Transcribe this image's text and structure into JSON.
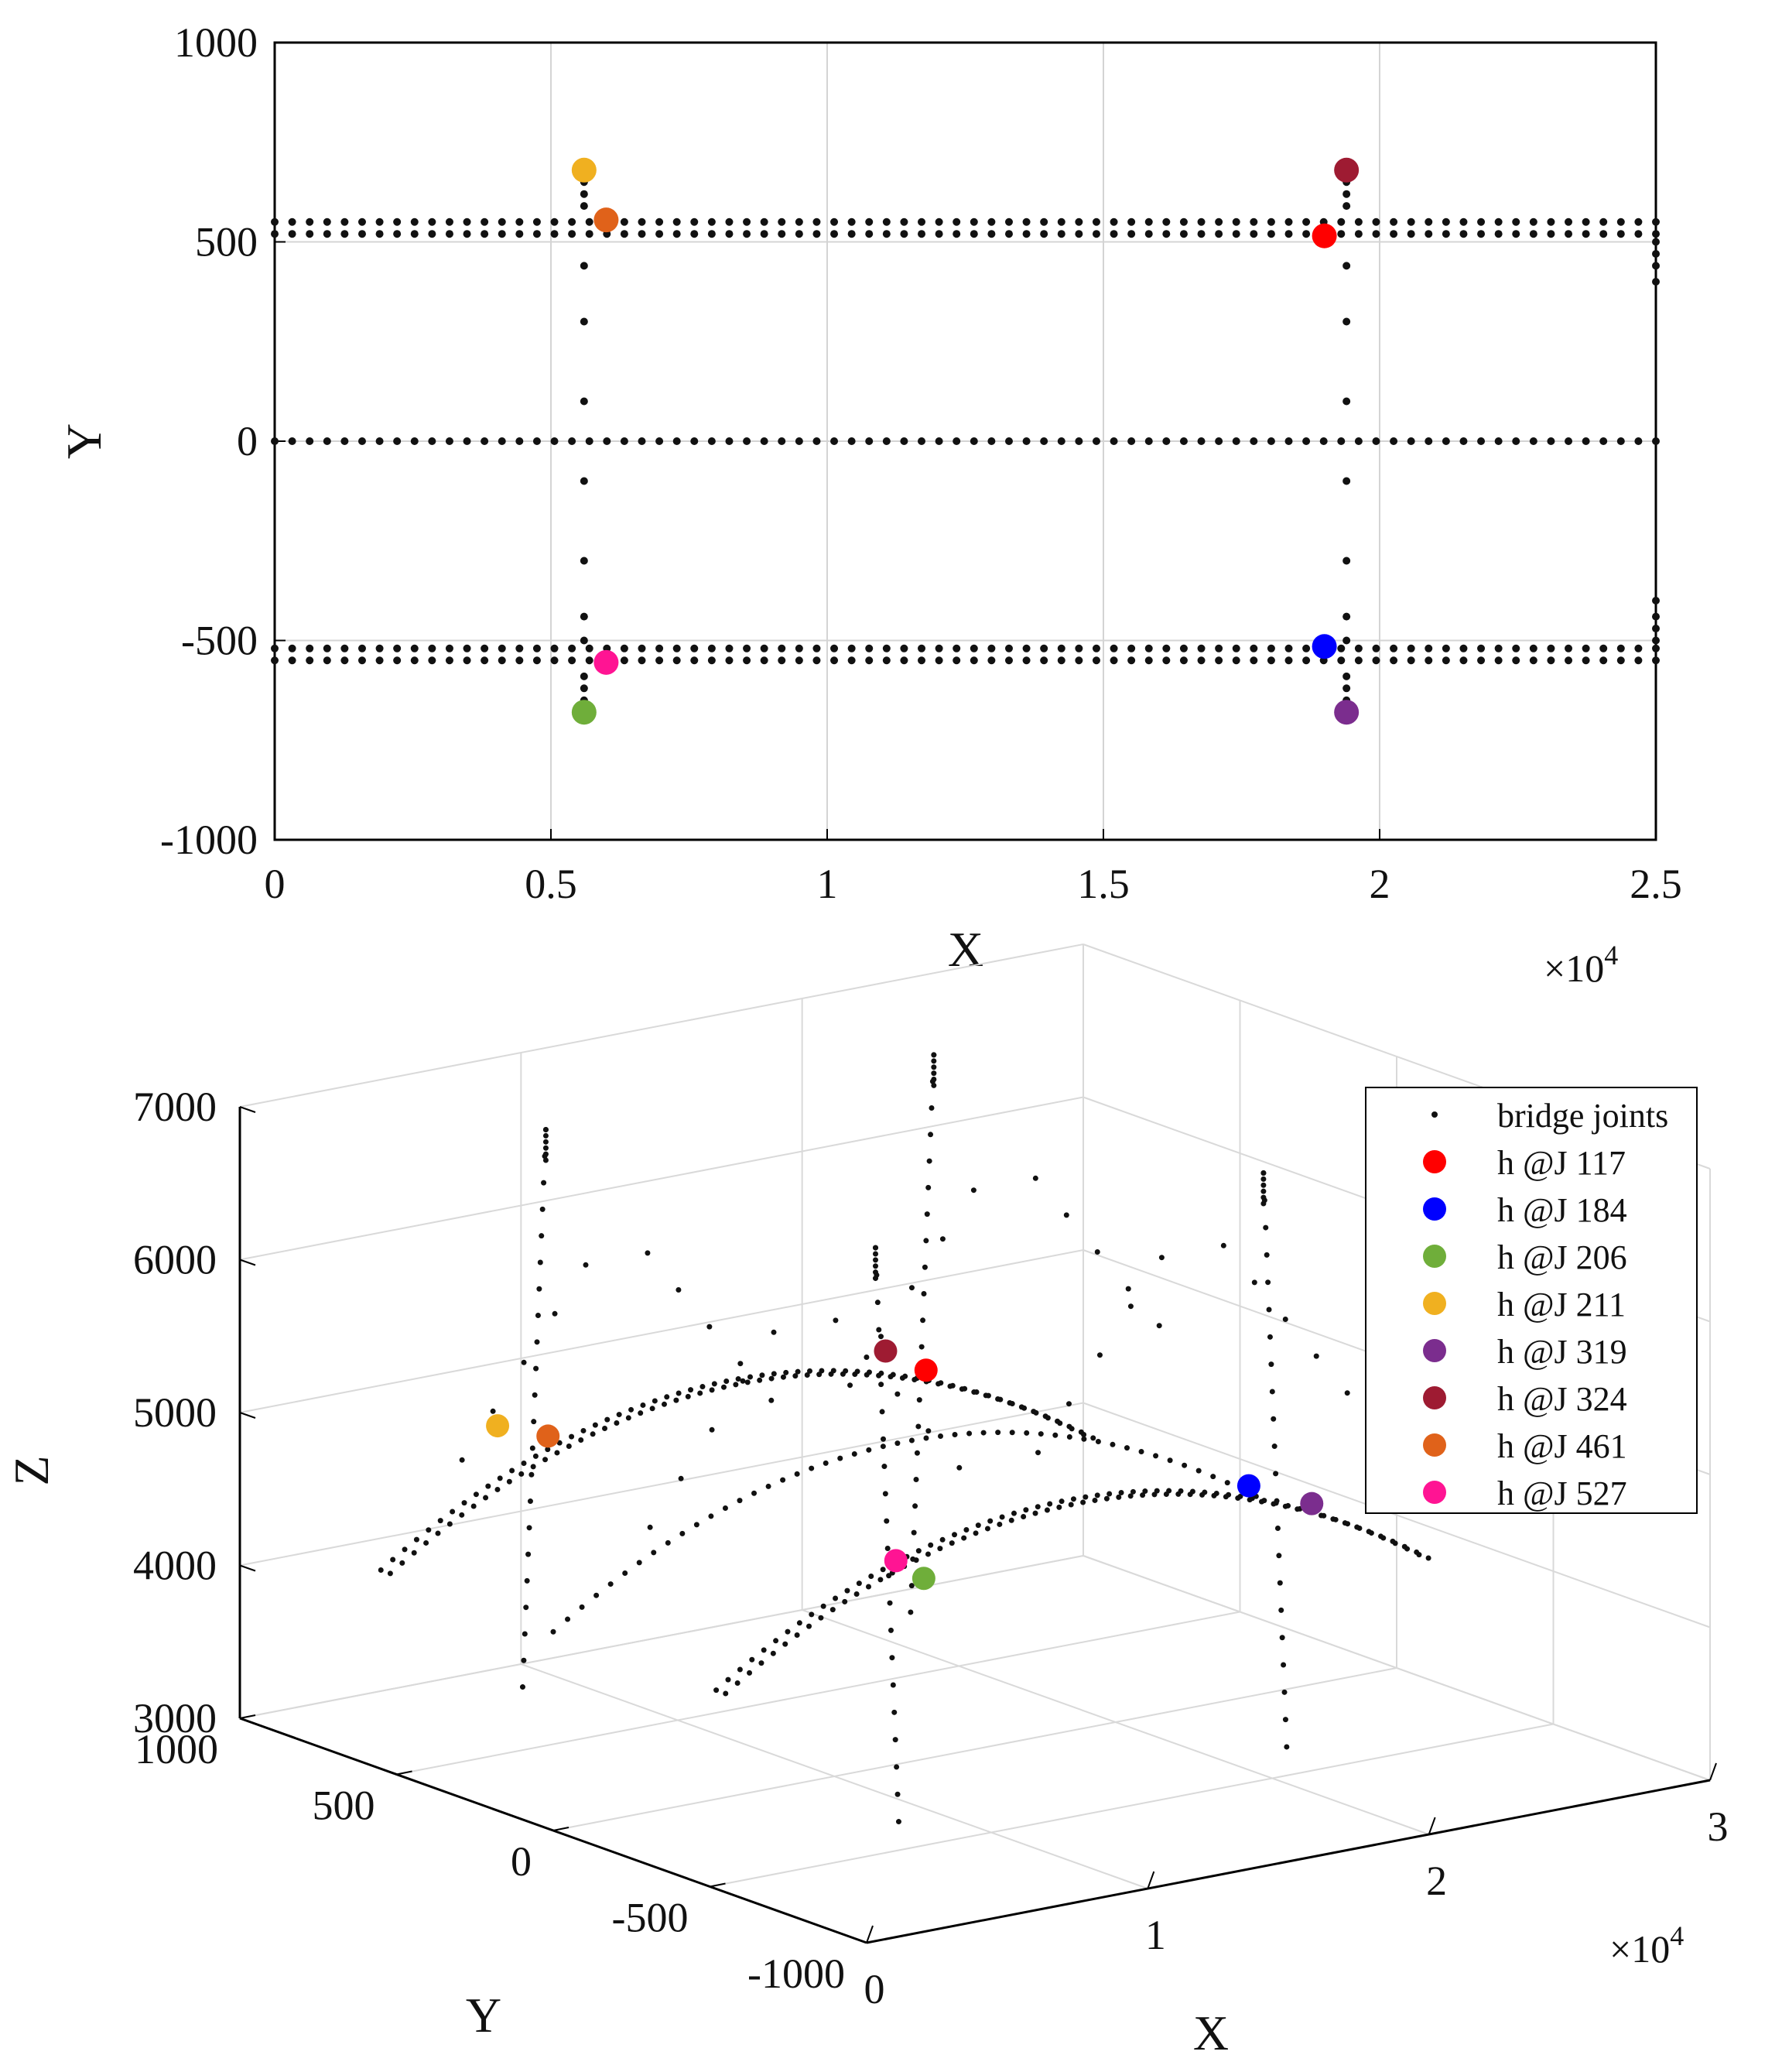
{
  "colors": {
    "bridge_joints": "#111111",
    "J117": "#ff0000",
    "J184": "#0000ff",
    "J206": "#6fae3a",
    "J211": "#f0b020",
    "J319": "#7b2d8e",
    "J324": "#9e1b32",
    "J461": "#e0621a",
    "J527": "#ff1493"
  },
  "chart_data": [
    {
      "type": "scatter",
      "view": "plan",
      "xlabel": "X",
      "ylabel": "Y",
      "x_exponent_label": "×10",
      "x_exponent": "4",
      "xlim": [
        0,
        25000
      ],
      "ylim": [
        -1000,
        1000
      ],
      "xticks": [
        0,
        5000,
        10000,
        15000,
        20000,
        25000
      ],
      "xtick_labels": [
        "0",
        "0.5",
        "1",
        "1.5",
        "2",
        "2.5"
      ],
      "yticks": [
        -1000,
        -500,
        0,
        500,
        1000
      ],
      "ytick_labels": [
        "-1000",
        "-500",
        "0",
        "500",
        "1000"
      ],
      "grid": true,
      "bridge_joint_lines": [
        {
          "y": 550,
          "x_start": 0,
          "x_end": 25000,
          "count": 80
        },
        {
          "y": 520,
          "x_start": 0,
          "x_end": 25000,
          "count": 80
        },
        {
          "y": 0,
          "x_start": 0,
          "x_end": 25000,
          "count": 80
        },
        {
          "y": -520,
          "x_start": 0,
          "x_end": 25000,
          "count": 80
        },
        {
          "y": -550,
          "x_start": 0,
          "x_end": 25000,
          "count": 80
        }
      ],
      "bridge_joint_columns": [
        {
          "x": 5600,
          "y": [
            -650,
            -620,
            -590,
            -500,
            -440,
            -300,
            -100,
            100,
            300,
            440,
            590,
            620,
            650
          ]
        },
        {
          "x": 19400,
          "y": [
            -650,
            -620,
            -590,
            -500,
            -440,
            -300,
            -100,
            100,
            300,
            440,
            590,
            620,
            650
          ]
        },
        {
          "x": 25000,
          "y": [
            -500,
            -470,
            -440,
            -400,
            400,
            440,
            470,
            500
          ]
        }
      ],
      "highlighted": [
        {
          "label": "h @J 211",
          "key": "J211",
          "x": 5600,
          "y": 680
        },
        {
          "label": "h @J 461",
          "key": "J461",
          "x": 6000,
          "y": 555
        },
        {
          "label": "h @J 324",
          "key": "J324",
          "x": 19400,
          "y": 680
        },
        {
          "label": "h @J 117",
          "key": "J117",
          "x": 19000,
          "y": 515
        },
        {
          "label": "h @J 184",
          "key": "J184",
          "x": 19000,
          "y": -515
        },
        {
          "label": "h @J 527",
          "key": "J527",
          "x": 6000,
          "y": -555
        },
        {
          "label": "h @J 206",
          "key": "J206",
          "x": 5600,
          "y": -680
        },
        {
          "label": "h @J 319",
          "key": "J319",
          "x": 19400,
          "y": -680
        }
      ]
    },
    {
      "type": "scatter",
      "view": "3d",
      "xlabel": "X",
      "ylabel": "Y",
      "zlabel": "Z",
      "x_exponent_label": "×10",
      "x_exponent": "4",
      "xlim": [
        0,
        30000
      ],
      "ylim": [
        -1000,
        1000
      ],
      "zlim": [
        3000,
        7000
      ],
      "xticks": [
        0,
        10000,
        20000,
        30000
      ],
      "xtick_labels": [
        "0",
        "1",
        "2",
        "3"
      ],
      "yticks": [
        -1000,
        -500,
        0,
        500,
        1000
      ],
      "ytick_labels": [
        "-1000",
        "-500",
        "0",
        "500",
        "1000"
      ],
      "zticks": [
        3000,
        4000,
        5000,
        6000,
        7000
      ],
      "ztick_labels": [
        "3000",
        "4000",
        "5000",
        "6000",
        "7000"
      ],
      "grid": true,
      "legend_position": "top-right",
      "legend": [
        {
          "label": "bridge joints",
          "key": "bridge_joints"
        },
        {
          "label": "h @J 117",
          "key": "J117"
        },
        {
          "label": "h @J 184",
          "key": "J184"
        },
        {
          "label": "h @J 206",
          "key": "J206"
        },
        {
          "label": "h @J 211",
          "key": "J211"
        },
        {
          "label": "h @J 319",
          "key": "J319"
        },
        {
          "label": "h @J 324",
          "key": "J324"
        },
        {
          "label": "h @J 461",
          "key": "J461"
        },
        {
          "label": "h @J 527",
          "key": "J527"
        }
      ],
      "deck_profile": {
        "z_ends": 4300,
        "z_mid": 5100
      },
      "bridge_joint_lines": [
        {
          "y": 550,
          "x_start": 0,
          "x_end": 25000,
          "count": 60
        },
        {
          "y": 520,
          "x_start": 0,
          "x_end": 25000,
          "count": 60
        },
        {
          "y": 0,
          "x_start": 0,
          "x_end": 25000,
          "count": 50
        },
        {
          "y": -520,
          "x_start": 0,
          "x_end": 25000,
          "count": 60
        },
        {
          "y": -550,
          "x_start": 0,
          "x_end": 25000,
          "count": 60
        }
      ],
      "towers": [
        {
          "x": 5600,
          "y": 600,
          "z_bottom": 3300,
          "z_top": 7000
        },
        {
          "x": 5600,
          "y": -600,
          "z_bottom": 3300,
          "z_top": 7000
        },
        {
          "x": 19400,
          "y": 600,
          "z_bottom": 3300,
          "z_top": 7000
        },
        {
          "x": 19400,
          "y": -600,
          "z_bottom": 3300,
          "z_top": 7000
        }
      ],
      "highlighted": [
        {
          "label": "h @J 211",
          "key": "J211",
          "x": 5600,
          "y": 680,
          "z": 4950
        },
        {
          "label": "h @J 461",
          "key": "J461",
          "x": 6000,
          "y": 555,
          "z": 4960
        },
        {
          "label": "h @J 324",
          "key": "J324",
          "x": 19400,
          "y": 680,
          "z": 4950
        },
        {
          "label": "h @J 117",
          "key": "J117",
          "x": 19000,
          "y": 515,
          "z": 4960
        },
        {
          "label": "h @J 184",
          "key": "J184",
          "x": 19000,
          "y": -515,
          "z": 4960
        },
        {
          "label": "h @J 527",
          "key": "J527",
          "x": 6000,
          "y": -555,
          "z": 4960
        },
        {
          "label": "h @J 206",
          "key": "J206",
          "x": 5600,
          "y": -680,
          "z": 4950
        },
        {
          "label": "h @J 319",
          "key": "J319",
          "x": 19400,
          "y": -680,
          "z": 4950
        }
      ]
    }
  ]
}
